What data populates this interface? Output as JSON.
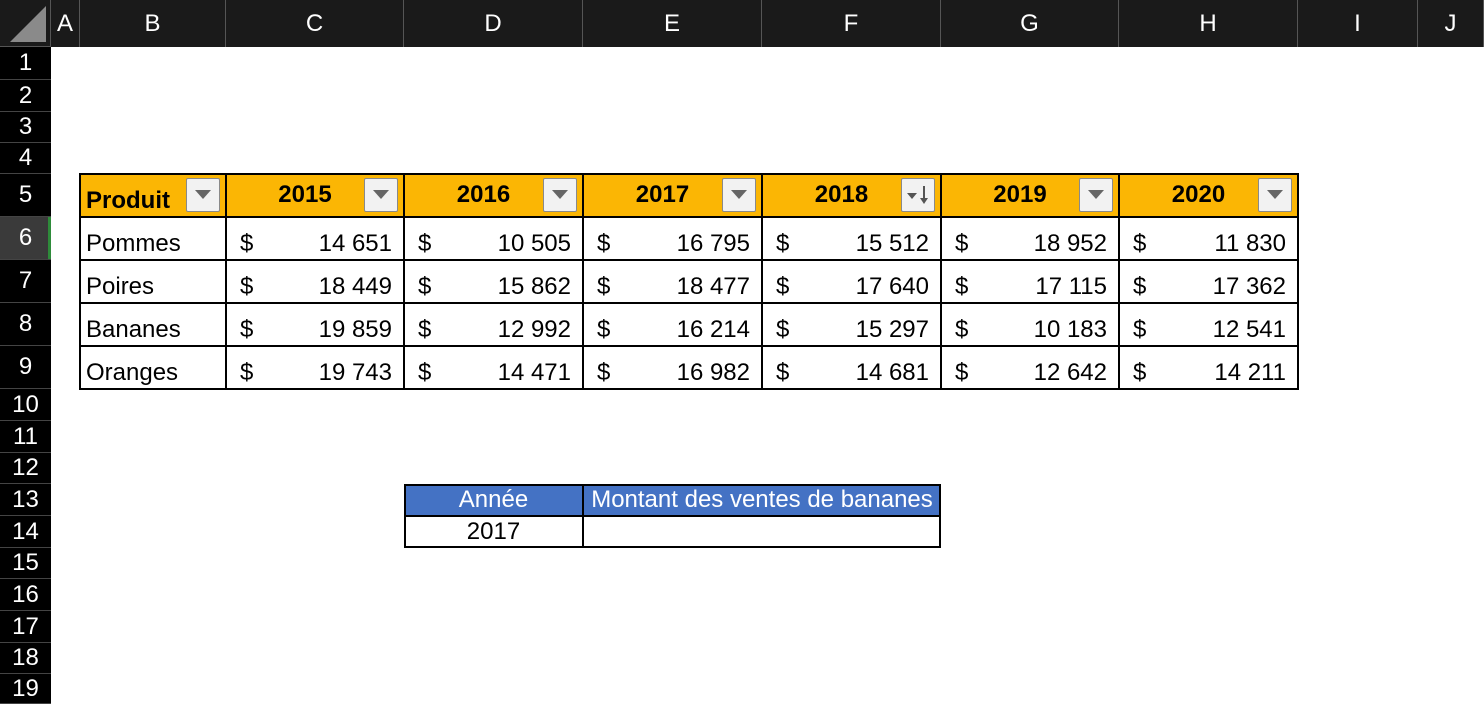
{
  "columns": [
    "A",
    "B",
    "C",
    "D",
    "E",
    "F",
    "G",
    "H",
    "I",
    "J"
  ],
  "rows": [
    "1",
    "2",
    "3",
    "4",
    "5",
    "6",
    "7",
    "8",
    "9",
    "10",
    "11",
    "12",
    "13",
    "14",
    "15",
    "16",
    "17",
    "18",
    "19"
  ],
  "selected_row": "6",
  "colors": {
    "header_fill": "#fbb604",
    "lookup_header_fill": "#4472c4",
    "selection_accent": "#2e8b3a"
  },
  "table": {
    "product_header": "Produit",
    "years": [
      "2015",
      "2016",
      "2017",
      "2018",
      "2019",
      "2020"
    ],
    "sorted_column": "2018",
    "currency": "$",
    "products": [
      {
        "name": "Pommes",
        "values": [
          "14 651",
          "10 505",
          "16 795",
          "15 512",
          "18 952",
          "11 830"
        ]
      },
      {
        "name": "Poires",
        "values": [
          "18 449",
          "15 862",
          "18 477",
          "17 640",
          "17 115",
          "17 362"
        ]
      },
      {
        "name": "Bananes",
        "values": [
          "19 859",
          "12 992",
          "16 214",
          "15 297",
          "10 183",
          "12 541"
        ]
      },
      {
        "name": "Oranges",
        "values": [
          "19 743",
          "14 471",
          "16 982",
          "14 681",
          "12 642",
          "14 211"
        ]
      }
    ]
  },
  "lookup": {
    "year_header": "Année",
    "amount_header": "Montant des ventes de bananes",
    "year_value": "2017",
    "amount_value": ""
  }
}
